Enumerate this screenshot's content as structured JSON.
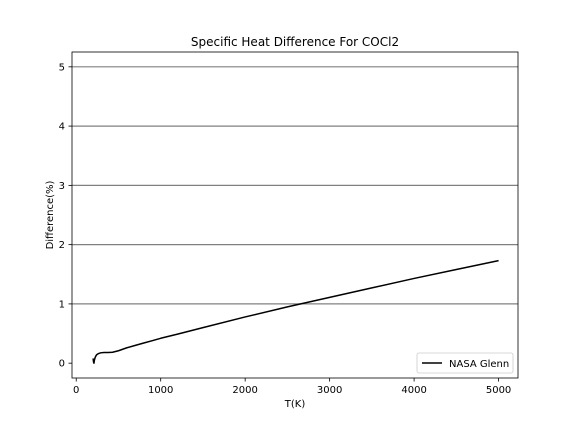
{
  "chart_data": {
    "type": "line",
    "title": "Specific Heat Difference For COCl2",
    "xlabel": "T(K)",
    "ylabel": "Difference(%)",
    "xlim": [
      -50,
      5230
    ],
    "ylim": [
      -0.25,
      5.25
    ],
    "xticks": [
      0,
      1000,
      2000,
      3000,
      4000,
      5000
    ],
    "yticks": [
      0,
      1,
      2,
      3,
      4,
      5
    ],
    "hlines": [
      1,
      2,
      3,
      4,
      5
    ],
    "grid": false,
    "legend_position": "lower-right",
    "series": [
      {
        "name": "NASA Glenn",
        "color": "#000000",
        "points": [
          [
            200,
            0.08
          ],
          [
            205,
            0.02
          ],
          [
            210,
            0.0
          ],
          [
            215,
            0.05
          ],
          [
            225,
            0.1
          ],
          [
            240,
            0.14
          ],
          [
            260,
            0.16
          ],
          [
            290,
            0.175
          ],
          [
            330,
            0.18
          ],
          [
            380,
            0.18
          ],
          [
            430,
            0.185
          ],
          [
            500,
            0.21
          ],
          [
            600,
            0.26
          ],
          [
            700,
            0.3
          ],
          [
            800,
            0.34
          ],
          [
            900,
            0.38
          ],
          [
            1000,
            0.42
          ],
          [
            1200,
            0.49
          ],
          [
            1500,
            0.6
          ],
          [
            2000,
            0.78
          ],
          [
            2500,
            0.95
          ],
          [
            3000,
            1.11
          ],
          [
            3500,
            1.27
          ],
          [
            4000,
            1.43
          ],
          [
            4500,
            1.58
          ],
          [
            5000,
            1.73
          ]
        ]
      }
    ]
  }
}
